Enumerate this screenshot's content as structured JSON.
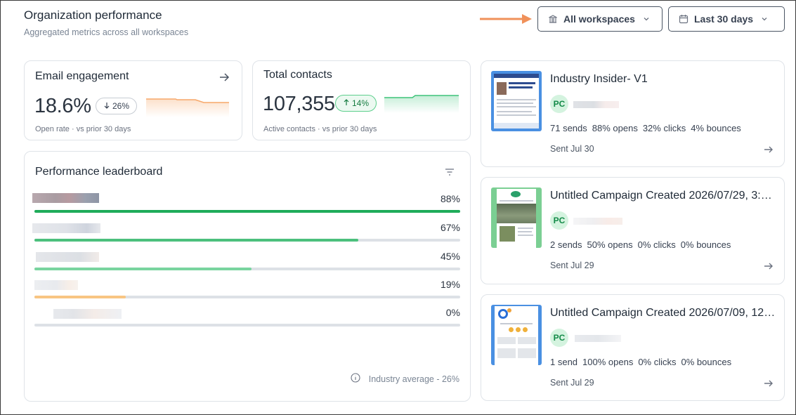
{
  "header": {
    "title": "Organization performance",
    "subtitle": "Aggregated metrics across all workspaces"
  },
  "filters": {
    "workspaces_label": "All workspaces",
    "period_label": "Last 30 days"
  },
  "email_engagement": {
    "title": "Email engagement",
    "value": "18.6%",
    "change": "26%",
    "change_direction": "down",
    "footnote": "Open rate · vs prior 30 days",
    "sparkline_color": "#f7a86a"
  },
  "total_contacts": {
    "title": "Total contacts",
    "value": "107,355",
    "change": "14%",
    "change_direction": "up",
    "footnote": "Active contacts · vs prior 30 days",
    "sparkline_color": "#3fc47a"
  },
  "leaderboard": {
    "title": "Performance leaderboard",
    "rows": [
      {
        "pct": "88%",
        "fraction": 1.0,
        "color": "#1fac5a"
      },
      {
        "pct": "67%",
        "fraction": 0.76,
        "color": "#4cc07d"
      },
      {
        "pct": "45%",
        "fraction": 0.51,
        "color": "#79d49f"
      },
      {
        "pct": "19%",
        "fraction": 0.215,
        "color": "#f8c582"
      },
      {
        "pct": "0%",
        "fraction": 0.0,
        "color": "#dde1e6"
      }
    ],
    "industry_average": "Industry average - 26%"
  },
  "campaigns": [
    {
      "title": "Industry Insider- V1",
      "avatar": "PC",
      "stats": [
        "71 sends",
        "88% opens",
        "32% clicks",
        "4% bounces"
      ],
      "date": "Sent Jul 30",
      "thumb_color": "#4a90e2"
    },
    {
      "title": "Untitled Campaign Created 2026/07/29, 3:…",
      "avatar": "PC",
      "stats": [
        "2 sends",
        "50% opens",
        "0% clicks",
        "0% bounces"
      ],
      "date": "Sent Jul 29",
      "thumb_color": "#7bcf93"
    },
    {
      "title": "Untitled Campaign Created 2026/07/09, 12…",
      "avatar": "PC",
      "stats": [
        "1 send",
        "100% opens",
        "0% clicks",
        "0% bounces"
      ],
      "date": "Sent Jul 29",
      "thumb_color": "#4a90e2"
    }
  ]
}
